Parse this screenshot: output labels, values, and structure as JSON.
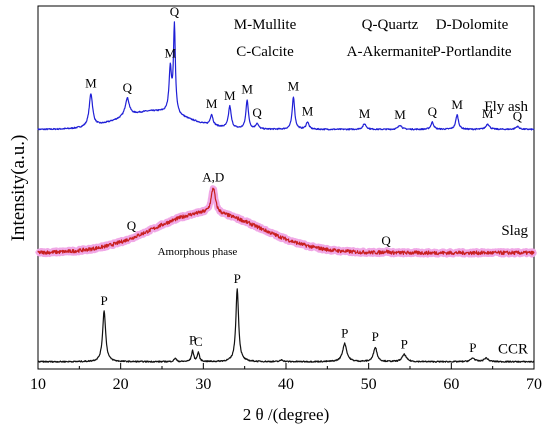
{
  "chart_data": {
    "type": "line",
    "title": "",
    "xlabel": "2 θ /(degree)",
    "ylabel": "Intensity(a.u.)",
    "xlim": [
      10,
      70
    ],
    "xticks": [
      10,
      20,
      30,
      40,
      50,
      60,
      70
    ],
    "y_ticks_shown": false,
    "grid": false,
    "legend": {
      "placement": "top-right",
      "entries": [
        "M-Mullite",
        "Q-Quartz",
        "D-Dolomite",
        "C-Calcite",
        "A-Akermanite",
        "P-Portlandite"
      ]
    },
    "series": [
      {
        "name": "Fly ash",
        "color": "#1f1fd6",
        "baseline": 0.66,
        "peaks": [
          {
            "x": 16.4,
            "h": 0.09,
            "w": 0.25,
            "label": "M"
          },
          {
            "x": 20.8,
            "h": 0.05,
            "w": 0.3,
            "label": "Q"
          },
          {
            "x": 26.0,
            "h": 0.12,
            "w": 0.18,
            "label": "M"
          },
          {
            "x": 26.5,
            "h": 0.24,
            "w": 0.14,
            "label": "Q"
          },
          {
            "x": 31.0,
            "h": 0.03,
            "w": 0.2,
            "label": "M"
          },
          {
            "x": 33.2,
            "h": 0.06,
            "w": 0.2,
            "label": "M"
          },
          {
            "x": 35.3,
            "h": 0.08,
            "w": 0.18,
            "label": "M"
          },
          {
            "x": 36.5,
            "h": 0.015,
            "w": 0.2,
            "label": "Q"
          },
          {
            "x": 40.9,
            "h": 0.09,
            "w": 0.18,
            "label": "M"
          },
          {
            "x": 42.6,
            "h": 0.02,
            "w": 0.2,
            "label": "M"
          },
          {
            "x": 49.5,
            "h": 0.015,
            "w": 0.25,
            "label": "M"
          },
          {
            "x": 53.8,
            "h": 0.012,
            "w": 0.25,
            "label": "M"
          },
          {
            "x": 57.7,
            "h": 0.02,
            "w": 0.2,
            "label": "Q"
          },
          {
            "x": 60.7,
            "h": 0.04,
            "w": 0.2,
            "label": "M"
          },
          {
            "x": 64.4,
            "h": 0.015,
            "w": 0.25,
            "label": "M"
          },
          {
            "x": 68.0,
            "h": 0.008,
            "w": 0.25,
            "label": "Q"
          }
        ],
        "hump": {
          "x": 24.0,
          "h": 0.05,
          "w": 4.0
        }
      },
      {
        "name": "Slag",
        "color": "#c82020",
        "halo_color": "#f0a8e6",
        "baseline": 0.32,
        "peaks": [
          {
            "x": 31.2,
            "h": 0.07,
            "w": 0.3,
            "label": "A,D"
          },
          {
            "x": 52.1,
            "h": 0.004,
            "w": 0.3,
            "label": "Q"
          }
        ],
        "hump": {
          "x": 30.5,
          "h": 0.11,
          "w": 6.5
        },
        "annotations": [
          {
            "x": 21.3,
            "label": "Q"
          },
          {
            "x": 30.5,
            "label": "Amorphous phase"
          }
        ]
      },
      {
        "name": "CCR",
        "color": "#111111",
        "baseline": 0.02,
        "peaks": [
          {
            "x": 18.0,
            "h": 0.14,
            "w": 0.22,
            "label": "P"
          },
          {
            "x": 26.6,
            "h": 0.01,
            "w": 0.15,
            "label": ""
          },
          {
            "x": 28.7,
            "h": 0.03,
            "w": 0.15,
            "label": "P"
          },
          {
            "x": 29.4,
            "h": 0.025,
            "w": 0.15,
            "label": "C"
          },
          {
            "x": 34.1,
            "h": 0.2,
            "w": 0.2,
            "label": "P"
          },
          {
            "x": 39.5,
            "h": 0.005,
            "w": 0.2,
            "label": ""
          },
          {
            "x": 47.1,
            "h": 0.05,
            "w": 0.3,
            "label": "P"
          },
          {
            "x": 50.8,
            "h": 0.04,
            "w": 0.25,
            "label": "P"
          },
          {
            "x": 54.3,
            "h": 0.02,
            "w": 0.3,
            "label": "P"
          },
          {
            "x": 62.6,
            "h": 0.01,
            "w": 0.3,
            "label": "P"
          },
          {
            "x": 64.2,
            "h": 0.01,
            "w": 0.3,
            "label": ""
          }
        ]
      }
    ]
  }
}
